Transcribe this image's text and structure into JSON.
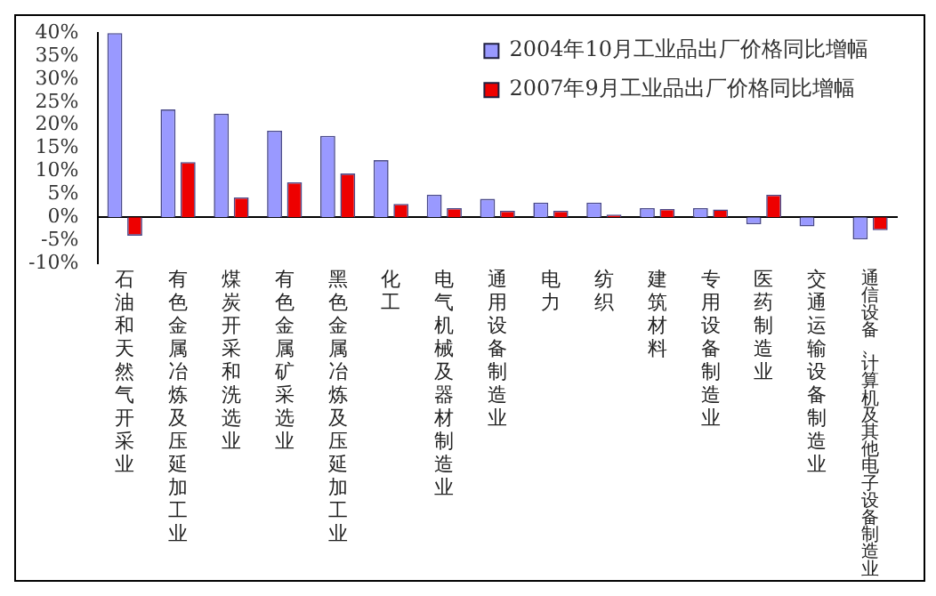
{
  "chart_data": {
    "type": "bar",
    "categories": [
      "石油和天然气开采业",
      "有色金属冶炼及压延加工业",
      "煤炭开采和洗选业",
      "有色金属矿采选业",
      "黑色金属冶炼及压延加工业",
      "化工",
      "电气机械及器材制造业",
      "通用设备制造业",
      "电力",
      "纺织",
      "建筑材料",
      "专用设备制造业",
      "医药制造业",
      "交通运输设备制造业",
      "通信设备、计算机及其他电子设备制造业"
    ],
    "series": [
      {
        "name": "2004年10月工业品出厂价格同比增幅",
        "color": "#9999ff",
        "values": [
          40,
          23.4,
          22.5,
          18.8,
          17.7,
          12.4,
          4.9,
          4.0,
          3.2,
          3.2,
          2.0,
          2.0,
          -1.5,
          -2.0,
          -4.8
        ]
      },
      {
        "name": "2007年9月工业品出厂价格同比增幅",
        "color": "#ee0000",
        "values": [
          -4.0,
          12.0,
          4.3,
          7.6,
          9.5,
          2.9,
          2.0,
          1.4,
          1.4,
          0.6,
          1.8,
          1.7,
          4.9,
          null,
          -2.8
        ]
      }
    ],
    "ylim": [
      -10,
      40
    ],
    "yticks": [
      {
        "value": -10,
        "label": "-10%"
      },
      {
        "value": -5,
        "label": "-5%"
      },
      {
        "value": 0,
        "label": "0%"
      },
      {
        "value": 5,
        "label": "5%"
      },
      {
        "value": 10,
        "label": "10%"
      },
      {
        "value": 15,
        "label": "15%"
      },
      {
        "value": 20,
        "label": "20%"
      },
      {
        "value": 25,
        "label": "25%"
      },
      {
        "value": 30,
        "label": "30%"
      },
      {
        "value": 35,
        "label": "35%"
      },
      {
        "value": 40,
        "label": "40%"
      }
    ],
    "grid": false,
    "legend": "top right"
  }
}
